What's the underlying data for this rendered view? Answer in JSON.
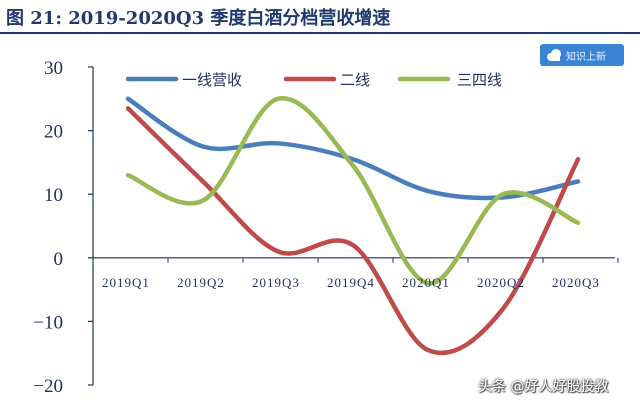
{
  "title": "图 21: 2019-2020Q3 季度白酒分档营收增速",
  "badge_label": "知识上新",
  "watermark": "头条 @好人好股投教",
  "colors": {
    "series1": "#4a7ebb",
    "series2": "#be4b48",
    "series3": "#98b954",
    "axis": "#1f2f5e",
    "title": "#1f3a6e"
  },
  "chart_data": {
    "type": "line",
    "title": "",
    "xlabel": "",
    "ylabel": "",
    "categories": [
      "2019Q1",
      "2019Q2",
      "2019Q3",
      "2019Q4",
      "2020Q1",
      "2020Q2",
      "2020Q3"
    ],
    "ylim": [
      -20,
      30
    ],
    "yticks": [
      -20,
      -10,
      0,
      10,
      20,
      30
    ],
    "grid": false,
    "legend_position": "top",
    "series": [
      {
        "name": "一线营收",
        "values": [
          25,
          17.5,
          18,
          15.5,
          10.5,
          9.5,
          12
        ]
      },
      {
        "name": "二线",
        "values": [
          23.5,
          12,
          1,
          2,
          -14.5,
          -8,
          15.5
        ]
      },
      {
        "name": "三四线",
        "values": [
          13,
          9,
          25,
          14.5,
          -4,
          10,
          5.5
        ]
      }
    ]
  }
}
